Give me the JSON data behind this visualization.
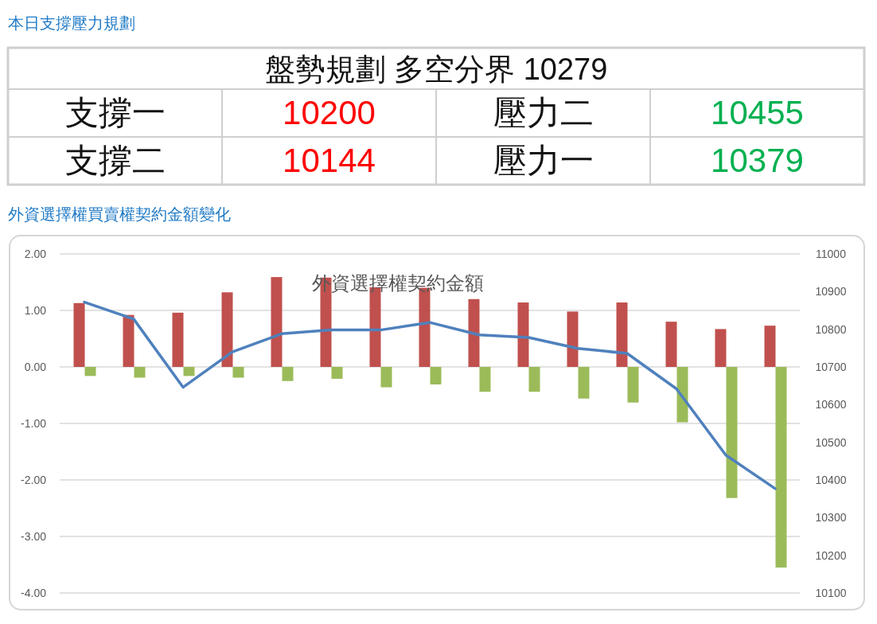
{
  "chart_data": [
    {
      "type": "other",
      "title": "本日支撐壓力規劃",
      "subtitle": "盤勢規劃 多空分界 10279",
      "annotations": [
        "支撐一",
        "10200",
        "壓力二",
        "10455",
        "支撐二",
        "10144",
        "壓力一",
        "10379"
      ]
    },
    {
      "type": "bar",
      "title": "外資選擇權買賣權契約金額變化",
      "subtitle": "外資選擇權契約金額",
      "categories": [
        null,
        null,
        null,
        null,
        null,
        null,
        null,
        null,
        null,
        null,
        null,
        null,
        null,
        null,
        null
      ],
      "series": [
        {
          "type": "bar",
          "color": "#c0504d",
          "values": [
            1.13,
            0.92,
            0.96,
            1.32,
            1.59,
            1.58,
            1.41,
            1.4,
            1.2,
            1.14,
            0.98,
            1.14,
            0.8,
            0.67,
            0.73
          ]
        },
        {
          "type": "bar",
          "color": "#9bbb59",
          "values": [
            -0.16,
            -0.19,
            -0.16,
            -0.19,
            -0.25,
            -0.21,
            -0.36,
            -0.31,
            -0.44,
            -0.44,
            -0.56,
            -0.63,
            -0.98,
            -2.32,
            -3.55
          ]
        },
        {
          "type": "line",
          "axis": "y2",
          "color": "#4f81bd",
          "values": [
            10872,
            10827,
            10646,
            10740,
            10788,
            10798,
            10798,
            10818,
            10785,
            10778,
            10749,
            10736,
            10642,
            10466,
            10377
          ]
        }
      ],
      "ylim": [
        -4,
        2
      ],
      "yticks": [
        {
          "value": 2,
          "label": "2.00"
        },
        {
          "value": 1,
          "label": "1.00"
        },
        {
          "value": 0,
          "label": "0.00"
        },
        {
          "value": -1,
          "label": "-1.00"
        },
        {
          "value": -2,
          "label": "-2.00"
        },
        {
          "value": -3,
          "label": "-3.00"
        },
        {
          "value": -4,
          "label": "-4.00"
        }
      ],
      "y2lim": [
        10100,
        11000
      ],
      "y2ticks": [
        11000,
        10900,
        10800,
        10700,
        10600,
        10500,
        10400,
        10300,
        10200,
        10100
      ],
      "grid": "y"
    }
  ]
}
